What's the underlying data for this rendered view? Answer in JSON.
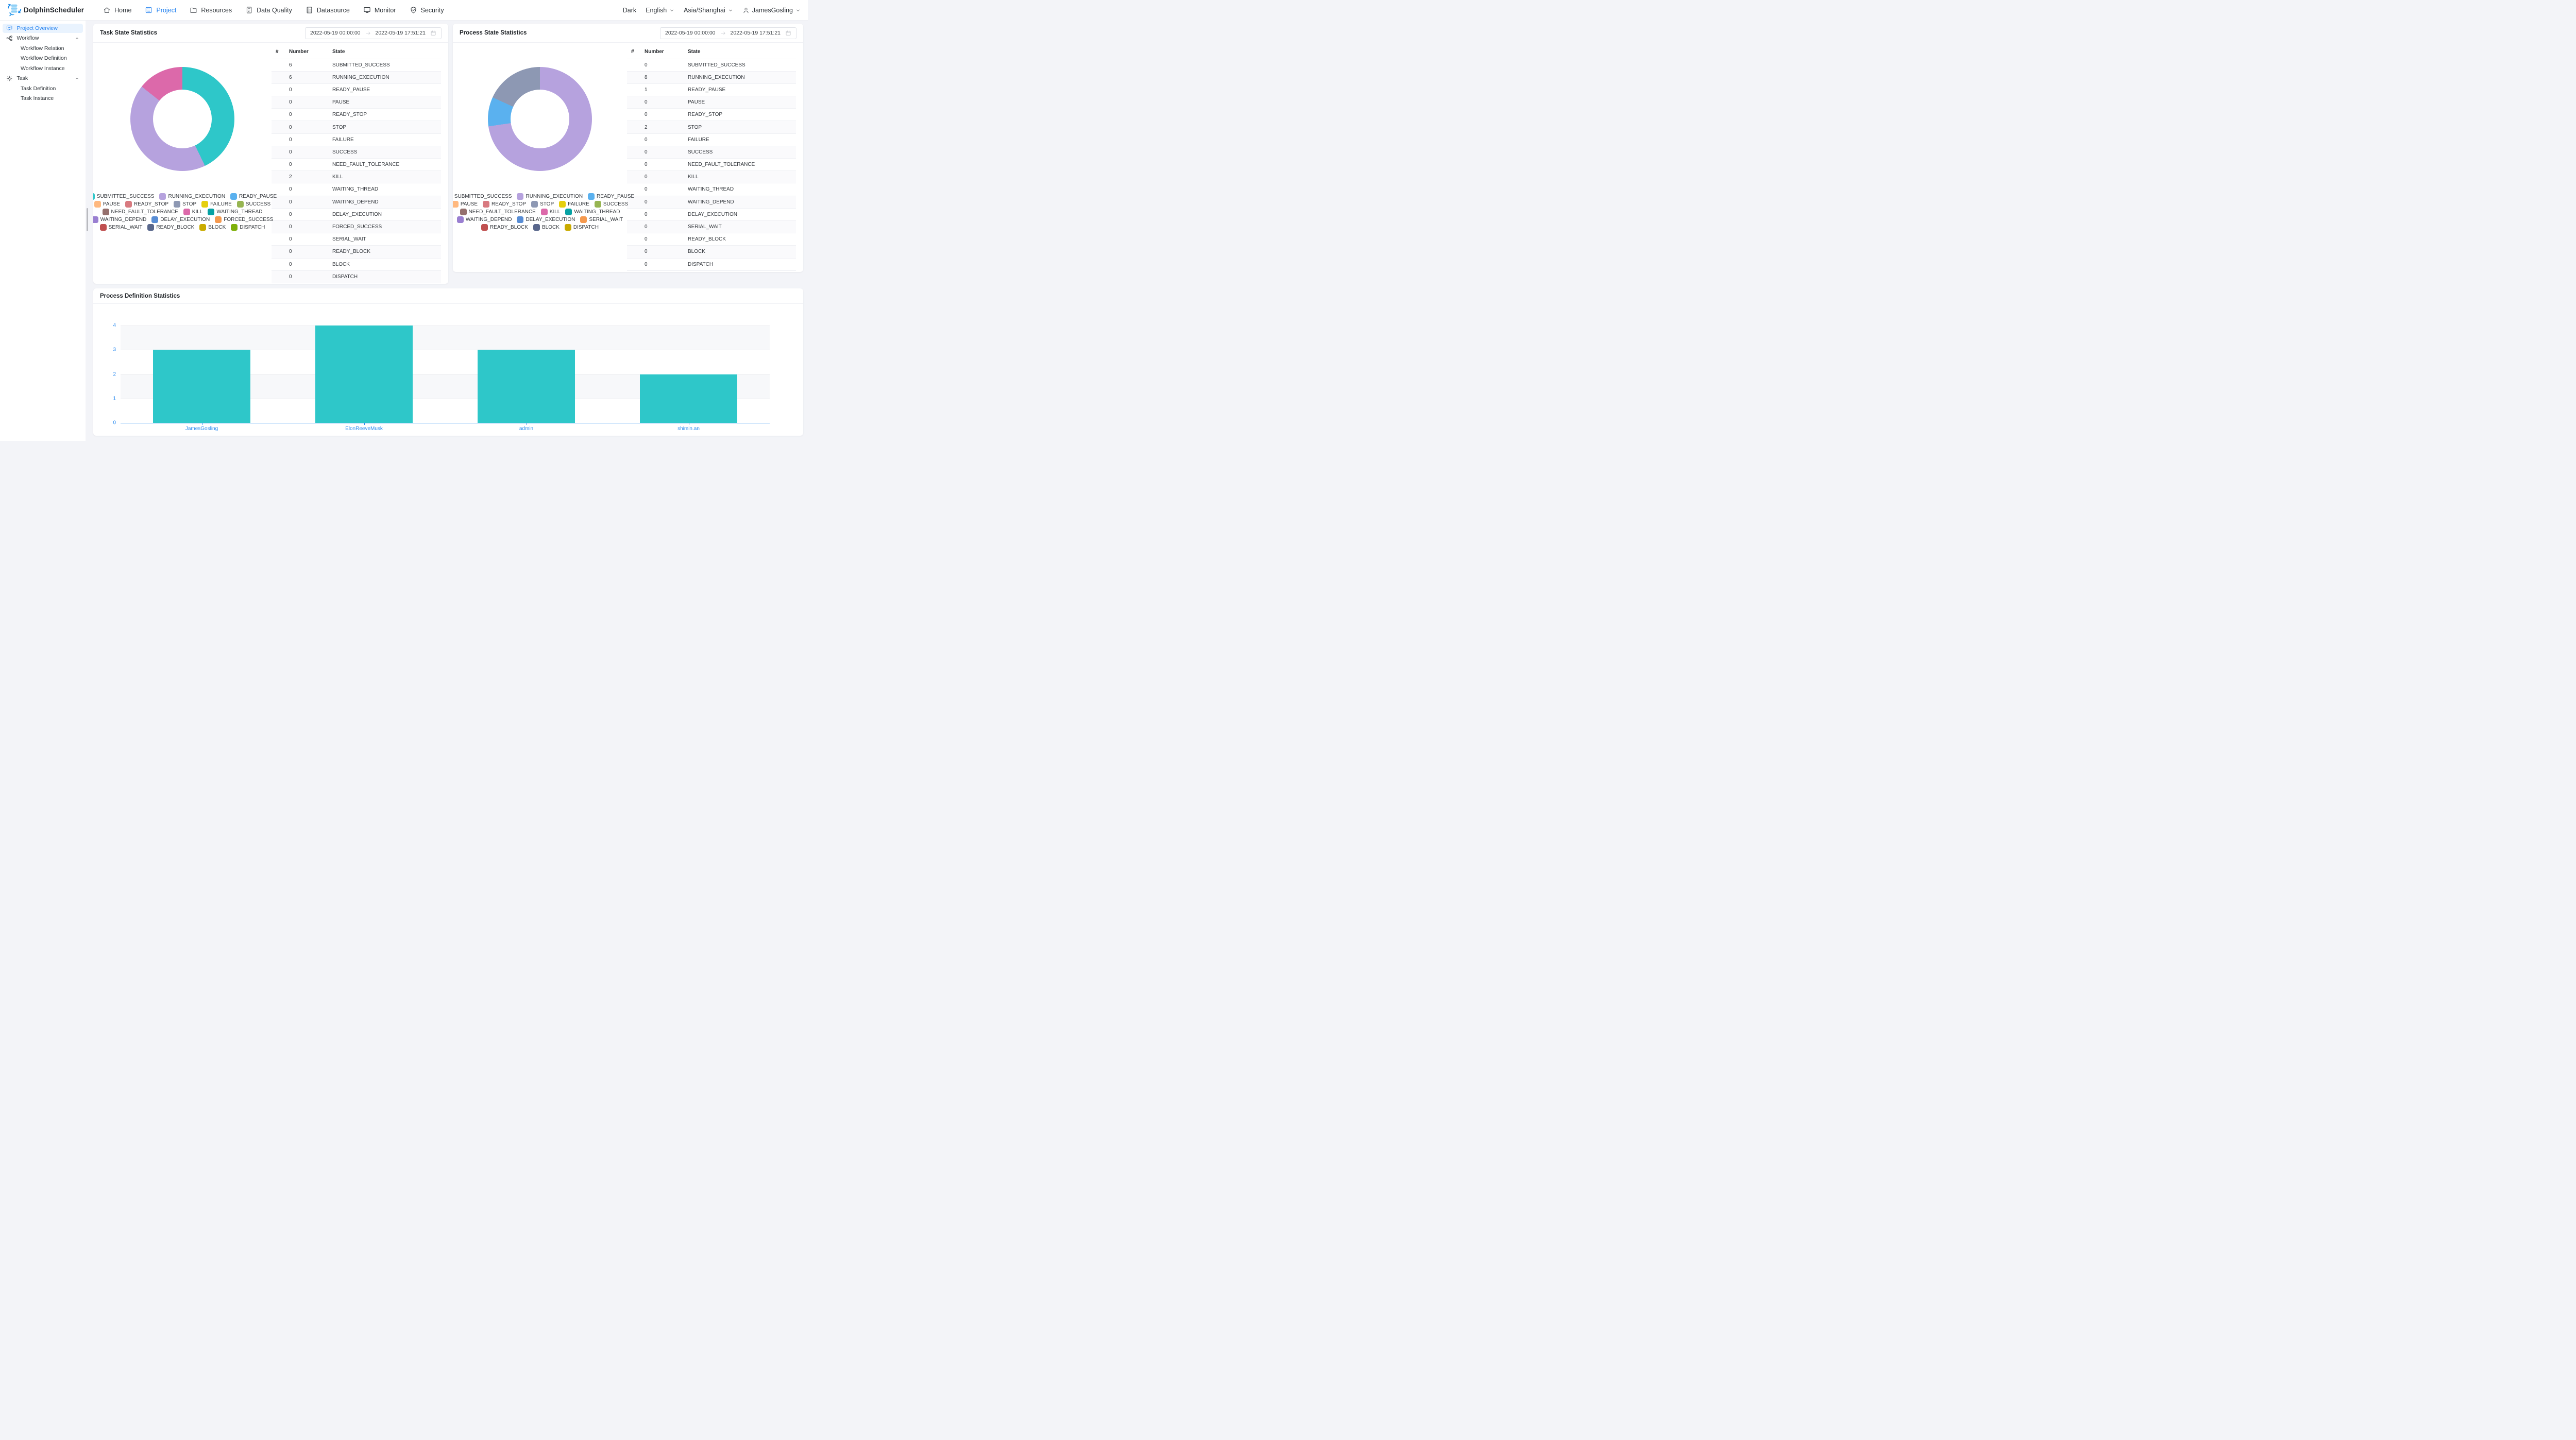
{
  "navbar": {
    "brand": "DolphinScheduler",
    "items": [
      {
        "id": "home",
        "label": "Home",
        "icon": "home",
        "active": false
      },
      {
        "id": "project",
        "label": "Project",
        "icon": "project",
        "active": true
      },
      {
        "id": "resources",
        "label": "Resources",
        "icon": "folder",
        "active": false
      },
      {
        "id": "data-quality",
        "label": "Data Quality",
        "icon": "doc-lines",
        "active": false
      },
      {
        "id": "datasource",
        "label": "Datasource",
        "icon": "server",
        "active": false
      },
      {
        "id": "monitor",
        "label": "Monitor",
        "icon": "monitor",
        "active": false
      },
      {
        "id": "security",
        "label": "Security",
        "icon": "shield-check",
        "active": false
      }
    ],
    "right": {
      "theme_label": "Dark",
      "language": "English",
      "timezone": "Asia/Shanghai",
      "username": "JamesGosling"
    }
  },
  "sidebar": {
    "items": [
      {
        "type": "item",
        "id": "project-overview",
        "label": "Project Overview",
        "icon": "overview",
        "active": true
      },
      {
        "type": "group",
        "id": "workflow",
        "label": "Workflow",
        "icon": "workflow",
        "expanded": true,
        "children": [
          {
            "id": "workflow-relation",
            "label": "Workflow Relation"
          },
          {
            "id": "workflow-definition",
            "label": "Workflow Definition"
          },
          {
            "id": "workflow-instance",
            "label": "Workflow Instance"
          }
        ]
      },
      {
        "type": "group",
        "id": "task",
        "label": "Task",
        "icon": "gear",
        "expanded": true,
        "children": [
          {
            "id": "task-definition",
            "label": "Task Definition"
          },
          {
            "id": "task-instance",
            "label": "Task Instance"
          }
        ]
      }
    ]
  },
  "palette": [
    "#2ec7c9",
    "#b6a2de",
    "#5ab1ef",
    "#ffb980",
    "#d87a80",
    "#8d98b3",
    "#e5cf0d",
    "#97b552",
    "#95706d",
    "#dc69aa",
    "#07a2a4",
    "#9a7fd1",
    "#588dd5",
    "#f5994e",
    "#c05050",
    "#59678c",
    "#c9ab00",
    "#7eb00a"
  ],
  "cards": {
    "task_state": {
      "title": "Task State Statistics",
      "date_start": "2022-05-19 00:00:00",
      "date_end": "2022-05-19 17:51:21",
      "columns": [
        "#",
        "Number",
        "State"
      ]
    },
    "process_state": {
      "title": "Process State Statistics",
      "date_start": "2022-05-19 00:00:00",
      "date_end": "2022-05-19 17:51:21",
      "columns": [
        "#",
        "Number",
        "State"
      ]
    },
    "process_definition": {
      "title": "Process Definition Statistics"
    }
  },
  "chart_data": [
    {
      "id": "task_state",
      "type": "pie",
      "title": "Task State Statistics",
      "categories": [
        "SUBMITTED_SUCCESS",
        "RUNNING_EXECUTION",
        "READY_PAUSE",
        "PAUSE",
        "READY_STOP",
        "STOP",
        "FAILURE",
        "SUCCESS",
        "NEED_FAULT_TOLERANCE",
        "KILL",
        "WAITING_THREAD",
        "WAITING_DEPEND",
        "DELAY_EXECUTION",
        "FORCED_SUCCESS",
        "SERIAL_WAIT",
        "READY_BLOCK",
        "BLOCK",
        "DISPATCH"
      ],
      "values": [
        6,
        6,
        0,
        0,
        0,
        0,
        0,
        0,
        0,
        2,
        0,
        0,
        0,
        0,
        0,
        0,
        0,
        0
      ],
      "legend_row_sizes": [
        3,
        5,
        3,
        3,
        4
      ],
      "legend_position": "bottom",
      "inner_radius_ratio": 0.565
    },
    {
      "id": "process_state",
      "type": "pie",
      "title": "Process State Statistics",
      "categories": [
        "SUBMITTED_SUCCESS",
        "RUNNING_EXECUTION",
        "READY_PAUSE",
        "PAUSE",
        "READY_STOP",
        "STOP",
        "FAILURE",
        "SUCCESS",
        "NEED_FAULT_TOLERANCE",
        "KILL",
        "WAITING_THREAD",
        "WAITING_DEPEND",
        "DELAY_EXECUTION",
        "SERIAL_WAIT",
        "READY_BLOCK",
        "BLOCK",
        "DISPATCH"
      ],
      "values": [
        0,
        8,
        1,
        0,
        0,
        2,
        0,
        0,
        0,
        0,
        0,
        0,
        0,
        0,
        0,
        0,
        0
      ],
      "legend_row_sizes": [
        3,
        5,
        3,
        3,
        3
      ],
      "legend_position": "bottom",
      "inner_radius_ratio": 0.565
    },
    {
      "id": "process_definition",
      "type": "bar",
      "title": "Process Definition Statistics",
      "categories": [
        "JamesGosling",
        "ElonReeveMusk",
        "admin",
        "shimin.an"
      ],
      "values": [
        3,
        4,
        3,
        2
      ],
      "xlabel": "",
      "ylabel": "",
      "ylim": [
        0,
        4
      ],
      "yticks": [
        0,
        1,
        2,
        3,
        4
      ],
      "grid": true,
      "bar_color": "#2ec7c9",
      "axis_color": "#2d8cf0"
    }
  ]
}
